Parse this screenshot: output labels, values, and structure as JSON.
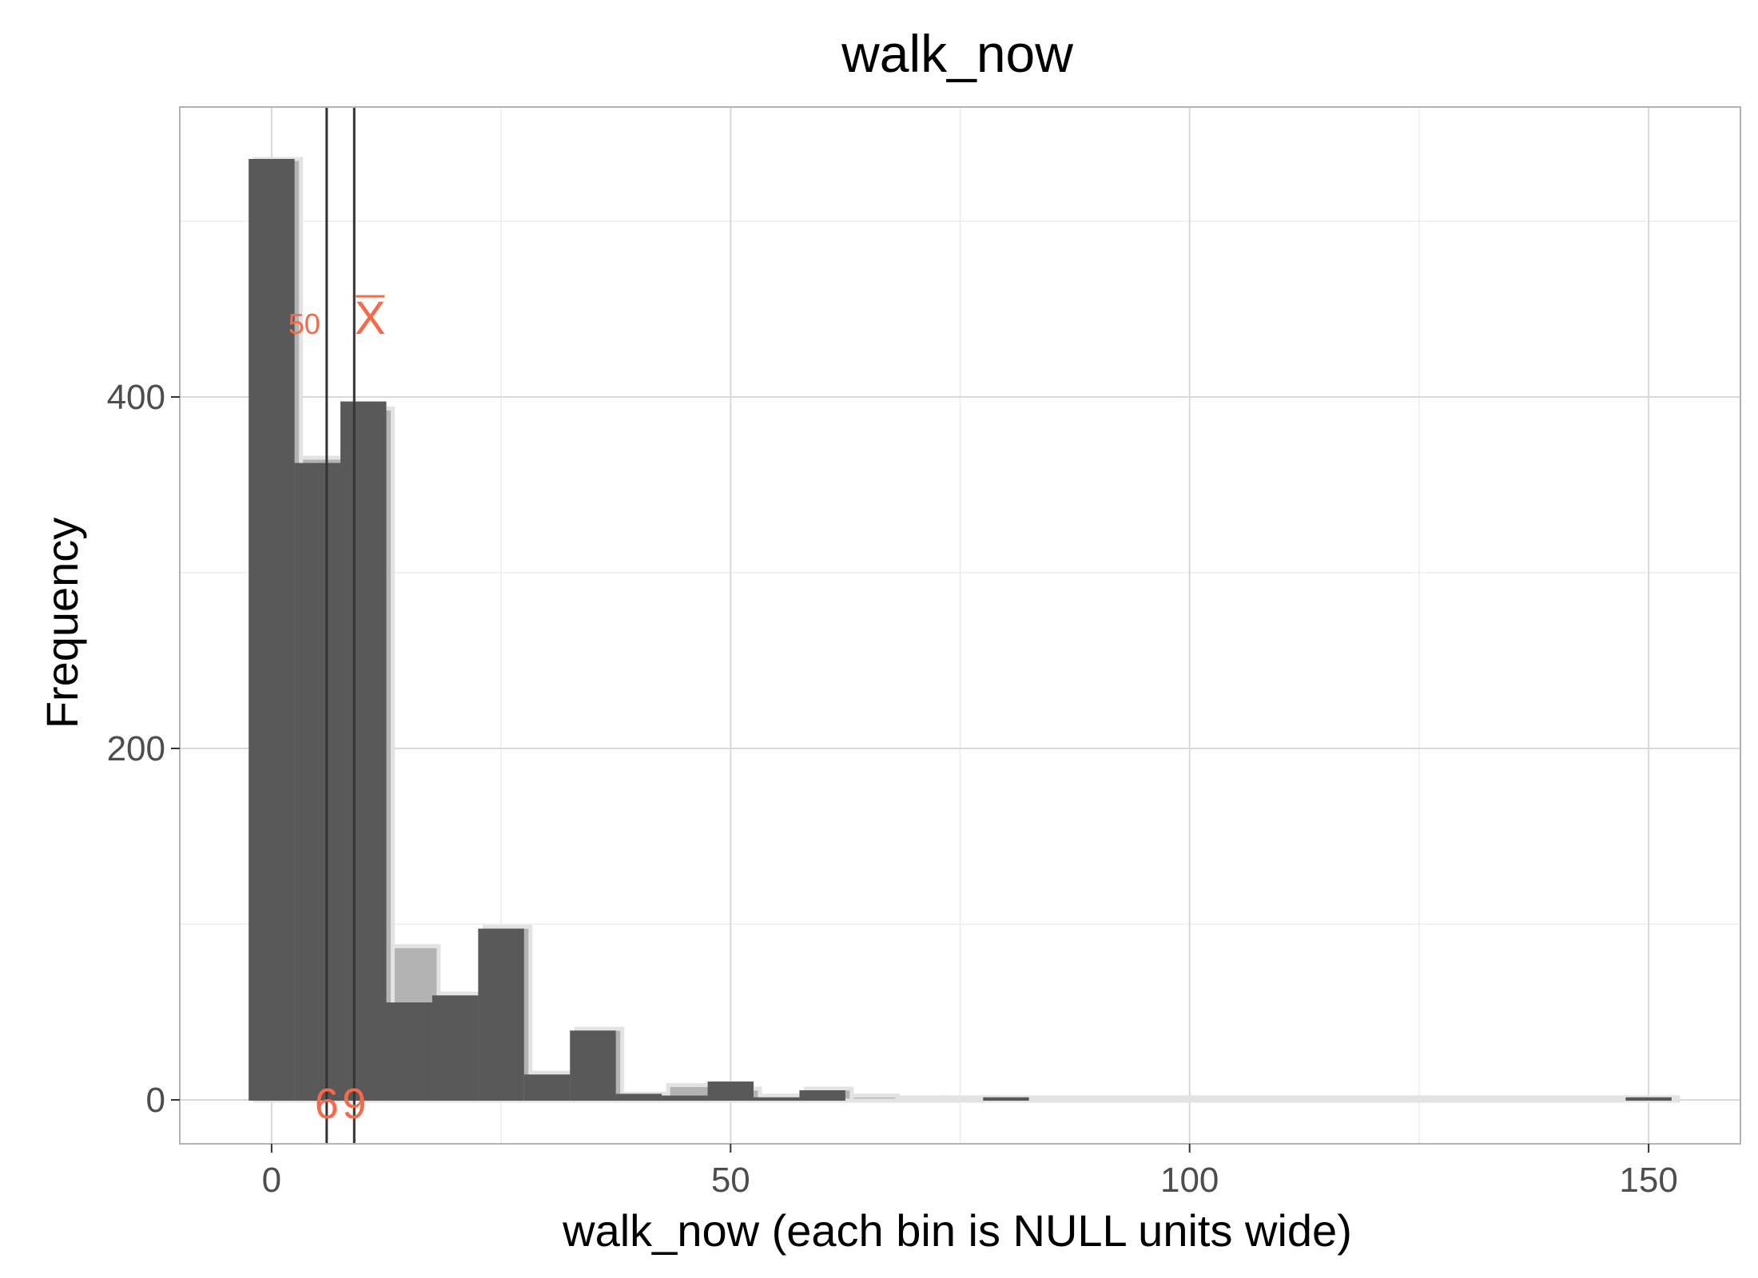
{
  "chart_data": {
    "type": "bar",
    "title": "walk_now",
    "xlabel": "walk_now (each bin is NULL units wide)",
    "ylabel": "Frequency",
    "xlim": [
      -10,
      160
    ],
    "ylim": [
      -25,
      565
    ],
    "x_ticks": [
      0,
      50,
      100,
      150
    ],
    "x_tick_labels": [
      "0",
      "50",
      "100",
      "150"
    ],
    "y_ticks": [
      0,
      200,
      400
    ],
    "y_tick_labels": [
      "0",
      "200",
      "400"
    ],
    "grid": true,
    "legend": "none",
    "bin_width": 5,
    "series": [
      {
        "role": "background",
        "bins": [
          {
            "x0": -2.5,
            "x1": 2.5,
            "count": 535
          },
          {
            "x0": 2.5,
            "x1": 7.5,
            "count": 365
          },
          {
            "x0": 7.5,
            "x1": 12.5,
            "count": 393
          },
          {
            "x0": 12.5,
            "x1": 17.5,
            "count": 87
          },
          {
            "x0": 17.5,
            "x1": 22.5,
            "count": 60
          },
          {
            "x0": 22.5,
            "x1": 27.5,
            "count": 98
          },
          {
            "x0": 27.5,
            "x1": 32.5,
            "count": 15
          },
          {
            "x0": 32.5,
            "x1": 37.5,
            "count": 40
          },
          {
            "x0": 37.5,
            "x1": 42.5,
            "count": 3
          },
          {
            "x0": 42.5,
            "x1": 47.5,
            "count": 8
          },
          {
            "x0": 47.5,
            "x1": 52.5,
            "count": 6
          },
          {
            "x0": 52.5,
            "x1": 57.5,
            "count": 2
          },
          {
            "x0": 57.5,
            "x1": 62.5,
            "count": 6
          },
          {
            "x0": 62.5,
            "x1": 67.5,
            "count": 2
          },
          {
            "x0": 67.5,
            "x1": 72.5,
            "count": 1
          },
          {
            "x0": 72.5,
            "x1": 77.5,
            "count": 1
          },
          {
            "x0": 77.5,
            "x1": 82.5,
            "count": 1
          },
          {
            "x0": 82.5,
            "x1": 152.5,
            "count": 1
          }
        ]
      },
      {
        "role": "foreground",
        "bins": [
          {
            "x0": -2.5,
            "x1": 2.5,
            "count": 535
          },
          {
            "x0": 2.5,
            "x1": 7.5,
            "count": 362
          },
          {
            "x0": 7.5,
            "x1": 12.5,
            "count": 397
          },
          {
            "x0": 12.5,
            "x1": 17.5,
            "count": 55
          },
          {
            "x0": 17.5,
            "x1": 22.5,
            "count": 59
          },
          {
            "x0": 22.5,
            "x1": 27.5,
            "count": 97
          },
          {
            "x0": 27.5,
            "x1": 32.5,
            "count": 14
          },
          {
            "x0": 32.5,
            "x1": 37.5,
            "count": 39
          },
          {
            "x0": 37.5,
            "x1": 42.5,
            "count": 3
          },
          {
            "x0": 42.5,
            "x1": 47.5,
            "count": 2
          },
          {
            "x0": 47.5,
            "x1": 52.5,
            "count": 10
          },
          {
            "x0": 52.5,
            "x1": 57.5,
            "count": 1
          },
          {
            "x0": 57.5,
            "x1": 62.5,
            "count": 5
          },
          {
            "x0": 77.5,
            "x1": 82.5,
            "count": 1
          },
          {
            "x0": 147.5,
            "x1": 152.5,
            "count": 1
          }
        ]
      }
    ],
    "reference_lines": [
      {
        "name": "median",
        "x": 6,
        "symbol": "50",
        "value_label": "6"
      },
      {
        "name": "mean",
        "x": 9,
        "symbol": "X",
        "value_label": "9"
      }
    ],
    "colors": {
      "foreground_bar": "#595959",
      "background_bar": "#b3b3b3",
      "reference_line": "#333333",
      "annotation": "#f8694a",
      "grid_major": "#d9d9d9",
      "grid_minor": "#ededed",
      "panel_border": "#b3b3b3"
    }
  }
}
